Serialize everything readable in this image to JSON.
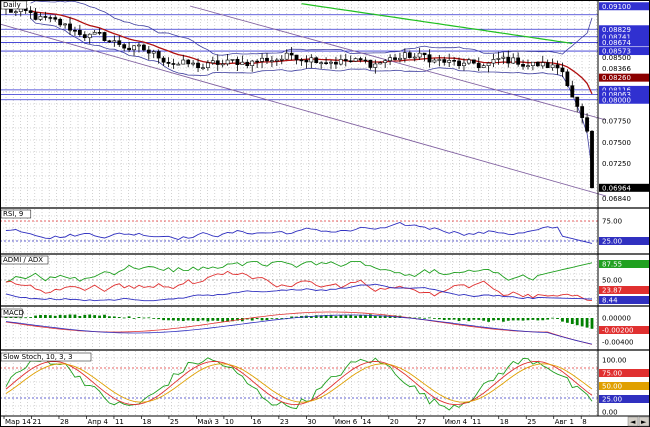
{
  "chart_data": [
    {
      "type": "candlestick",
      "title": "Daily",
      "price_ticks": [
        "0.09100",
        "0.08829",
        "0.08741",
        "0.08674",
        "0.08573",
        "0.08500",
        "0.08366",
        "0.08260",
        "0.08116",
        "0.08063",
        "0.08000",
        "0.07750",
        "0.07500",
        "0.07250",
        "0.06964",
        "0.06840"
      ],
      "close_highlight": "0.06964",
      "close_highlight_color": "#000000",
      "ma_highlight_color": "#8b0000",
      "overlays": [
        "bollinger-bands",
        "moving-average-red",
        "moving-average-green",
        "trendlines-purple",
        "horizontal-levels-blue"
      ]
    },
    {
      "type": "line",
      "title": "RSI, 9",
      "levels": [
        "75.00",
        "25.00"
      ],
      "series_color": "#3030c0"
    },
    {
      "type": "line",
      "title": "ADMI / ADX",
      "levels": [
        "87.55",
        "50.00",
        "23.87",
        "8.44"
      ],
      "series_colors": [
        "#20a020",
        "#e03030",
        "#3030c0"
      ]
    },
    {
      "type": "bar",
      "title": "MACD",
      "levels": [
        "0.00000",
        "-0.00200",
        "-0.00400"
      ],
      "bar_color": "#008000"
    },
    {
      "type": "line",
      "title": "Slow Stoch, 10, 3, 3",
      "levels": [
        "100.00",
        "75.00",
        "50.00",
        "25.00",
        "0.00"
      ],
      "series_colors": [
        "#20a020",
        "#e03030",
        "#e0a000"
      ]
    }
  ],
  "x_axis": {
    "labels": [
      "Мар 14",
      "21",
      "28",
      "Апр 4",
      "11",
      "18",
      "25",
      "Май 3",
      "10",
      "16",
      "23",
      "30",
      "Июн 6",
      "14",
      "20",
      "27",
      "Июл 4",
      "11",
      "18",
      "25",
      "Авг 1",
      "8"
    ],
    "corner_buttons": [
      "◄",
      "►"
    ]
  },
  "colors": {
    "background": "#ffffff",
    "grid": "#b4b4b4",
    "candle": "#000000",
    "bollinger": "#4040a0",
    "ma_red": "#b01010",
    "ma_green": "#20c020",
    "trendline": "#8060a0",
    "hline": "#3030d0",
    "separator": "#000000"
  }
}
